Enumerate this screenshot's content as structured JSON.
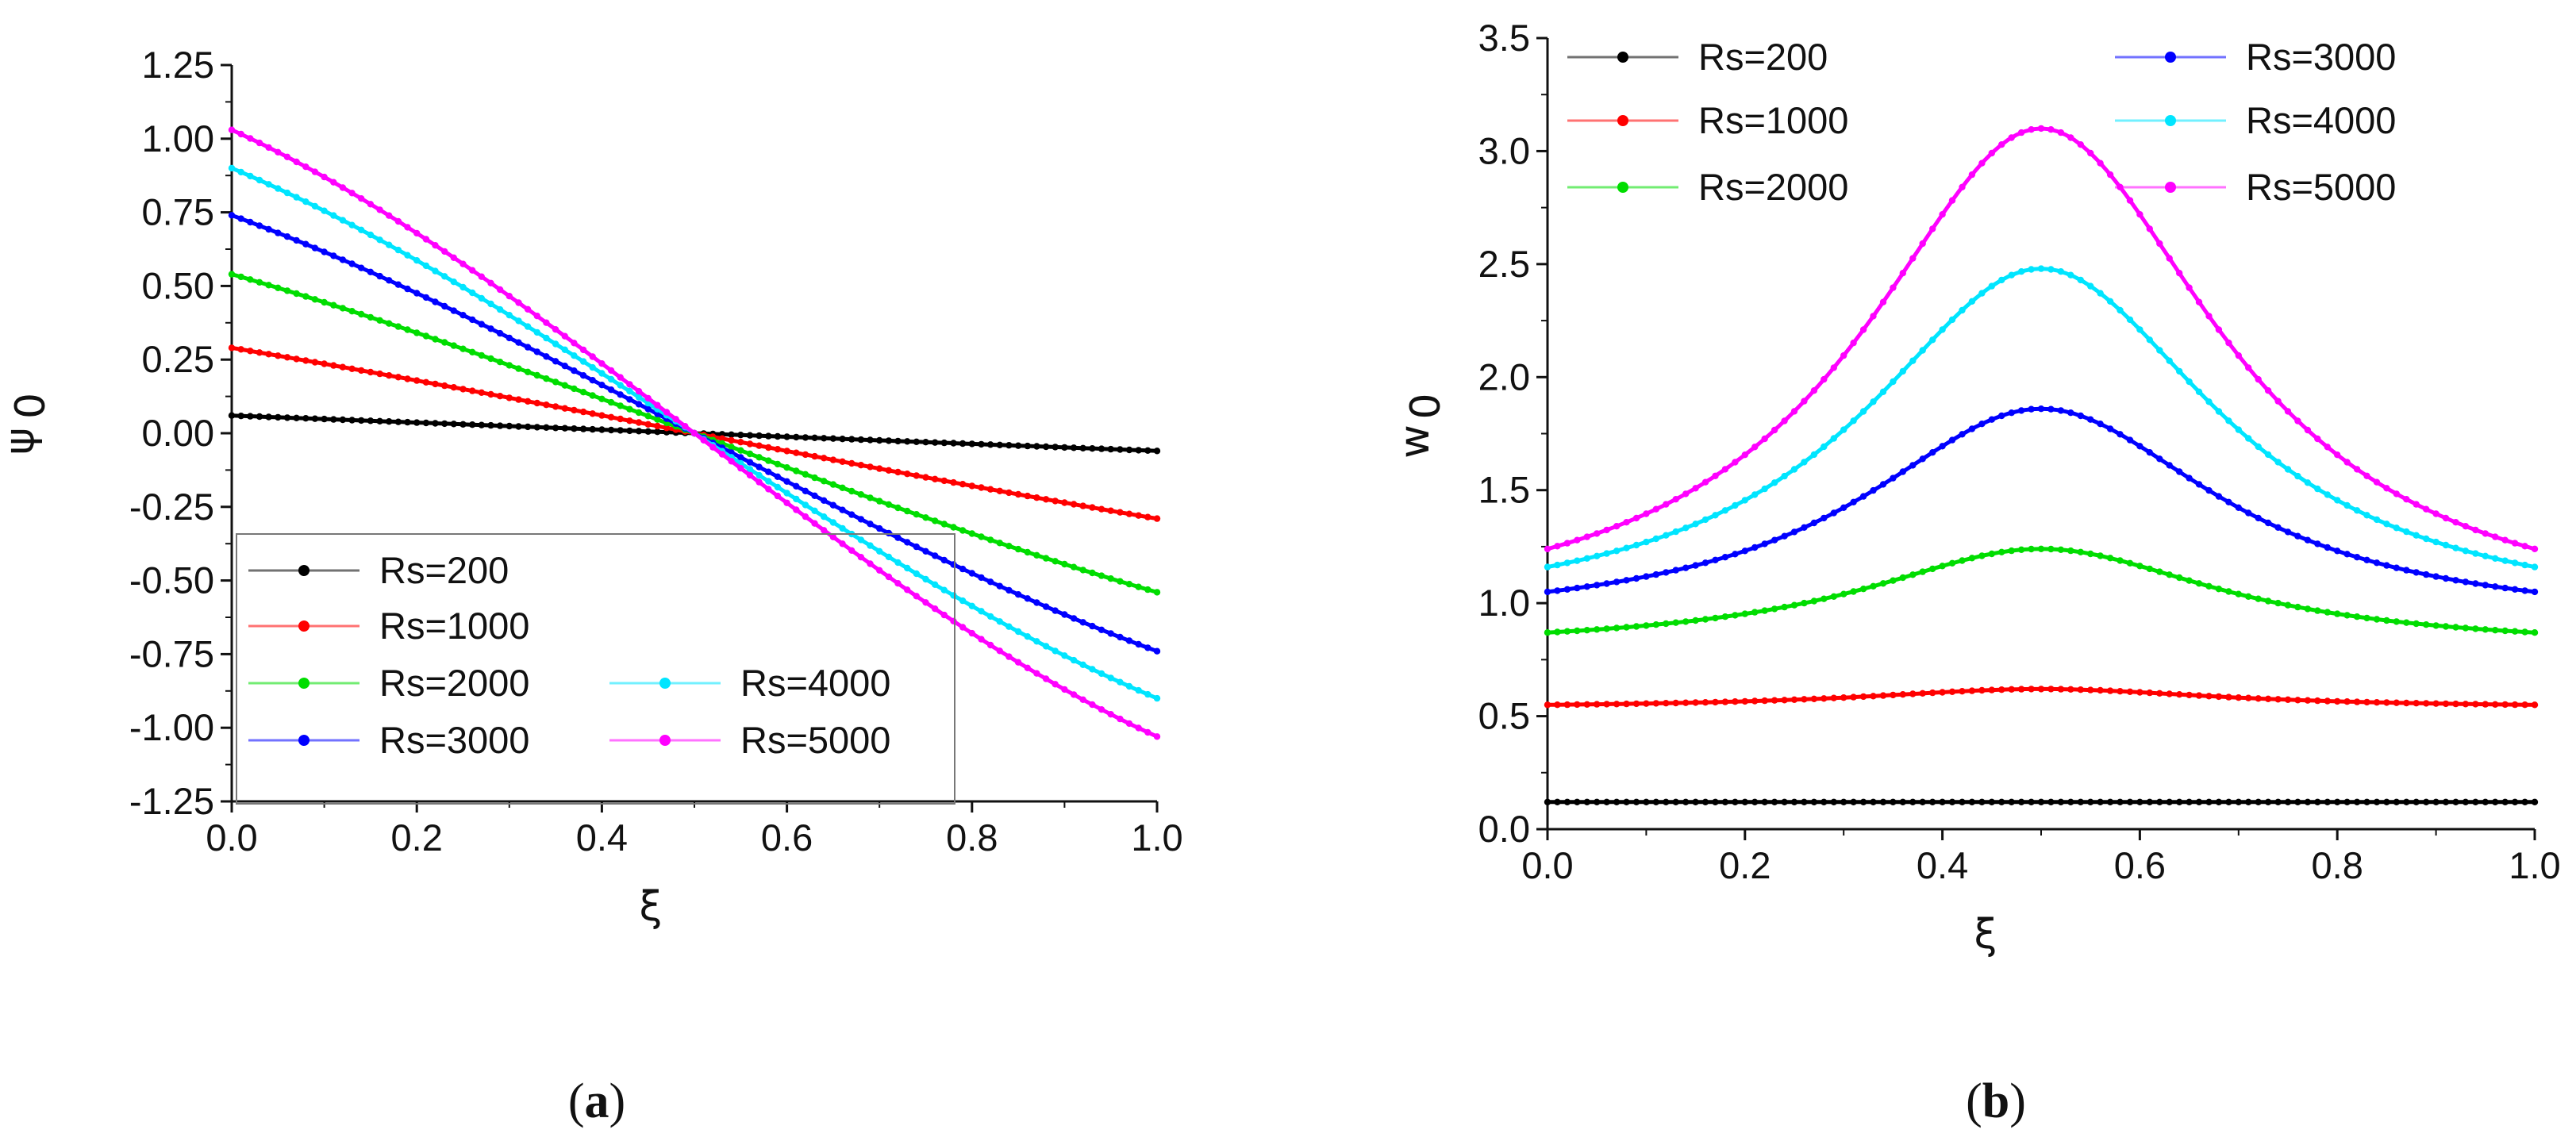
{
  "chart_data": [
    {
      "type": "line",
      "panel": "a",
      "caption_open": "(",
      "caption_letter": "a",
      "caption_close": ")",
      "xlabel": "ξ",
      "ylabel": "ψ",
      "ylabel_sub": "0",
      "xlim": [
        0.0,
        1.0
      ],
      "ylim": [
        -1.25,
        1.25
      ],
      "xticks": [
        "0.0",
        "0.2",
        "0.4",
        "0.6",
        "0.8",
        "1.0"
      ],
      "yticks": [
        "-1.25",
        "-1.00",
        "-0.75",
        "-0.50",
        "-0.25",
        "0.00",
        "0.25",
        "0.50",
        "0.75",
        "1.00",
        "1.25"
      ],
      "legend_position": "bottom-left",
      "series": [
        {
          "name": "Rs=200",
          "color": "#000000",
          "x": [
            0.0,
            0.5,
            1.0
          ],
          "values": [
            0.06,
            0.0,
            -0.06
          ]
        },
        {
          "name": "Rs=1000",
          "color": "#ff0000",
          "x": [
            0.0,
            0.5,
            1.0
          ],
          "values": [
            0.29,
            0.0,
            -0.29
          ]
        },
        {
          "name": "Rs=2000",
          "color": "#00dd00",
          "x": [
            0.0,
            0.5,
            1.0
          ],
          "values": [
            0.54,
            0.0,
            -0.54
          ]
        },
        {
          "name": "Rs=3000",
          "color": "#0000ff",
          "x": [
            0.0,
            0.5,
            1.0
          ],
          "values": [
            0.74,
            0.0,
            -0.74
          ]
        },
        {
          "name": "Rs=4000",
          "color": "#00e5ff",
          "x": [
            0.0,
            0.5,
            1.0
          ],
          "values": [
            0.9,
            0.0,
            -0.9
          ]
        },
        {
          "name": "Rs=5000",
          "color": "#ff00ff",
          "x": [
            0.0,
            0.5,
            1.0
          ],
          "values": [
            1.03,
            0.0,
            -1.03
          ]
        }
      ]
    },
    {
      "type": "line",
      "panel": "b",
      "caption_open": "(",
      "caption_letter": "b",
      "caption_close": ")",
      "xlabel": "ξ",
      "ylabel": "w",
      "ylabel_sub": "0",
      "xlim": [
        0.0,
        1.0
      ],
      "ylim": [
        0.0,
        3.5
      ],
      "xticks": [
        "0.0",
        "0.2",
        "0.4",
        "0.6",
        "0.8",
        "1.0"
      ],
      "yticks": [
        "0.0",
        "0.5",
        "1.0",
        "1.5",
        "2.0",
        "2.5",
        "3.0",
        "3.5"
      ],
      "legend_position": "top",
      "series": [
        {
          "name": "Rs=200",
          "color": "#000000",
          "x": [
            0.0,
            0.5,
            1.0
          ],
          "values": [
            0.12,
            0.12,
            0.12
          ]
        },
        {
          "name": "Rs=1000",
          "color": "#ff0000",
          "x": [
            0.0,
            0.5,
            1.0
          ],
          "values": [
            0.55,
            0.62,
            0.55
          ]
        },
        {
          "name": "Rs=2000",
          "color": "#00dd00",
          "x": [
            0.0,
            0.5,
            1.0
          ],
          "values": [
            0.87,
            1.24,
            0.87
          ]
        },
        {
          "name": "Rs=3000",
          "color": "#0000ff",
          "x": [
            0.0,
            0.5,
            1.0
          ],
          "values": [
            1.05,
            1.86,
            1.05
          ]
        },
        {
          "name": "Rs=4000",
          "color": "#00e5ff",
          "x": [
            0.0,
            0.5,
            1.0
          ],
          "values": [
            1.16,
            2.48,
            1.16
          ]
        },
        {
          "name": "Rs=5000",
          "color": "#ff00ff",
          "x": [
            0.0,
            0.5,
            1.0
          ],
          "values": [
            1.24,
            3.1,
            1.24
          ]
        }
      ]
    }
  ]
}
